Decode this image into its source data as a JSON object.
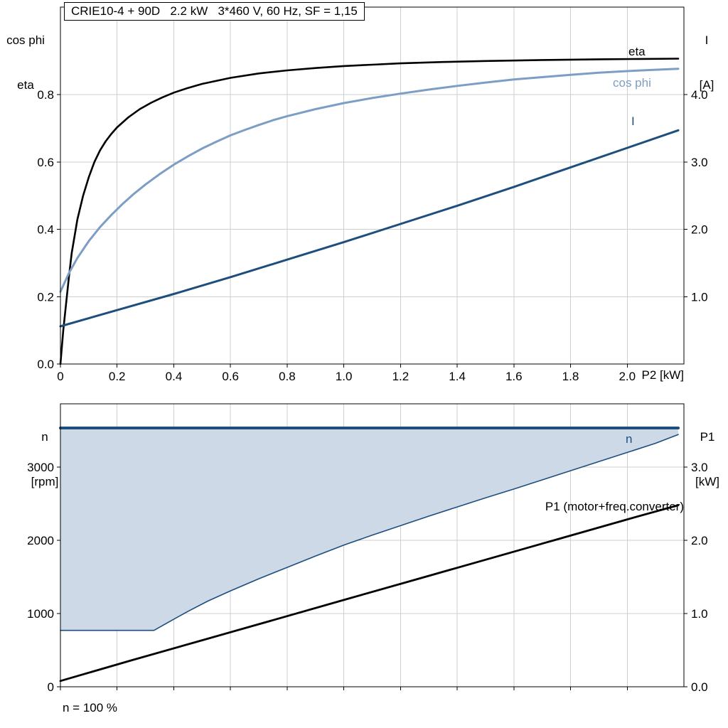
{
  "colors": {
    "grid": "#cfcfcf",
    "frame": "#000000",
    "dark_blue": "#1d4e7e",
    "light_blue": "#7d9ec4",
    "black": "#000000",
    "fill_blue": "#cdd9e6"
  },
  "chart_data": [
    {
      "type": "line",
      "title": "CRIE10-4 + 90D   2.2 kW   3*460 V, 60 Hz, SF = 1,15",
      "x_axis": {
        "min": 0,
        "max": 2.2,
        "tick_values": [
          0,
          0.2,
          0.4,
          0.6,
          0.8,
          1.0,
          1.2,
          1.4,
          1.6,
          1.8,
          2.0
        ],
        "tick_labels": [
          "0",
          "0.2",
          "0.4",
          "0.6",
          "0.8",
          "1.0",
          "1.2",
          "1.4",
          "1.6",
          "1.8",
          "2.0"
        ],
        "unit_label": "P2 [kW]"
      },
      "left_axis": {
        "title_lines": [
          "cos phi",
          "eta"
        ],
        "min": 0,
        "max": 1.06,
        "tick_values": [
          0,
          0.2,
          0.4,
          0.6,
          0.8
        ],
        "tick_labels": [
          "0.0",
          "0.2",
          "0.4",
          "0.6",
          "0.8"
        ]
      },
      "right_axis": {
        "title_lines": [
          "I",
          "[A]"
        ],
        "min": 0,
        "max": 5.3,
        "tick_values": [
          1,
          2,
          3,
          4
        ],
        "tick_labels": [
          "1.0",
          "2.0",
          "3.0",
          "4.0"
        ]
      },
      "series": [
        {
          "name": "eta",
          "label": "eta",
          "axis": "left",
          "color": "#000000",
          "width": 2.6,
          "points": [
            [
              0,
              0
            ],
            [
              0.01,
              0.1
            ],
            [
              0.02,
              0.18
            ],
            [
              0.03,
              0.26
            ],
            [
              0.04,
              0.33
            ],
            [
              0.06,
              0.43
            ],
            [
              0.08,
              0.5
            ],
            [
              0.1,
              0.555
            ],
            [
              0.12,
              0.6
            ],
            [
              0.14,
              0.635
            ],
            [
              0.16,
              0.662
            ],
            [
              0.18,
              0.684
            ],
            [
              0.2,
              0.703
            ],
            [
              0.24,
              0.733
            ],
            [
              0.28,
              0.757
            ],
            [
              0.32,
              0.776
            ],
            [
              0.36,
              0.792
            ],
            [
              0.4,
              0.806
            ],
            [
              0.45,
              0.82
            ],
            [
              0.5,
              0.832
            ],
            [
              0.6,
              0.85
            ],
            [
              0.7,
              0.863
            ],
            [
              0.8,
              0.872
            ],
            [
              0.9,
              0.879
            ],
            [
              1.0,
              0.885
            ],
            [
              1.1,
              0.889
            ],
            [
              1.2,
              0.893
            ],
            [
              1.35,
              0.897
            ],
            [
              1.5,
              0.9
            ],
            [
              1.7,
              0.903
            ],
            [
              1.9,
              0.905
            ],
            [
              2.05,
              0.906
            ],
            [
              2.18,
              0.907
            ]
          ]
        },
        {
          "name": "cos phi",
          "label": "cos phi",
          "axis": "left",
          "color": "#7d9ec4",
          "width": 3,
          "points": [
            [
              0,
              0.215
            ],
            [
              0.03,
              0.27
            ],
            [
              0.06,
              0.315
            ],
            [
              0.1,
              0.365
            ],
            [
              0.14,
              0.407
            ],
            [
              0.18,
              0.443
            ],
            [
              0.22,
              0.476
            ],
            [
              0.26,
              0.506
            ],
            [
              0.3,
              0.533
            ],
            [
              0.35,
              0.564
            ],
            [
              0.4,
              0.592
            ],
            [
              0.45,
              0.617
            ],
            [
              0.5,
              0.64
            ],
            [
              0.55,
              0.66
            ],
            [
              0.6,
              0.679
            ],
            [
              0.65,
              0.695
            ],
            [
              0.7,
              0.71
            ],
            [
              0.75,
              0.724
            ],
            [
              0.8,
              0.736
            ],
            [
              0.9,
              0.757
            ],
            [
              1.0,
              0.775
            ],
            [
              1.1,
              0.79
            ],
            [
              1.2,
              0.803
            ],
            [
              1.3,
              0.815
            ],
            [
              1.4,
              0.826
            ],
            [
              1.5,
              0.836
            ],
            [
              1.6,
              0.845
            ],
            [
              1.7,
              0.852
            ],
            [
              1.8,
              0.859
            ],
            [
              1.9,
              0.865
            ],
            [
              2.0,
              0.87
            ],
            [
              2.1,
              0.874
            ],
            [
              2.18,
              0.877
            ]
          ]
        },
        {
          "name": "I",
          "label": "I",
          "axis": "right",
          "color": "#1d4e7e",
          "width": 3,
          "points": [
            [
              0,
              0.56
            ],
            [
              0.2,
              0.8
            ],
            [
              0.4,
              1.04
            ],
            [
              0.6,
              1.29
            ],
            [
              0.8,
              1.55
            ],
            [
              1.0,
              1.81
            ],
            [
              1.2,
              2.08
            ],
            [
              1.4,
              2.35
            ],
            [
              1.6,
              2.63
            ],
            [
              1.8,
              2.92
            ],
            [
              2.0,
              3.21
            ],
            [
              2.18,
              3.47
            ]
          ]
        }
      ]
    },
    {
      "type": "line",
      "x_axis": {
        "min": 0,
        "max": 2.2,
        "tick_values": [
          0,
          0.2,
          0.4,
          0.6,
          0.8,
          1.0,
          1.2,
          1.4,
          1.6,
          1.8,
          2.0
        ],
        "tick_labels": [
          "",
          "",
          "",
          "",
          "",
          "",
          "",
          "",
          "",
          "",
          ""
        ],
        "unit_label": ""
      },
      "left_axis": {
        "title_lines": [
          "n",
          "[rpm]"
        ],
        "min": 0,
        "max": 3864,
        "tick_values": [
          0,
          1000,
          2000,
          3000
        ],
        "tick_labels": [
          "0",
          "1000",
          "2000",
          "3000"
        ]
      },
      "right_axis": {
        "title_lines": [
          "P1",
          "[kW]"
        ],
        "min": 0,
        "max": 3.864,
        "tick_values": [
          0,
          1,
          2,
          3
        ],
        "tick_labels": [
          "0.0",
          "1.0",
          "2.0",
          "3.0"
        ]
      },
      "fill": {
        "lower_series": "n",
        "upper": 3534,
        "color": "#cdd9e6"
      },
      "series": [
        {
          "name": "n max",
          "label": "",
          "axis": "left",
          "color": "#1d4e7e",
          "width": 4,
          "points": [
            [
              0,
              3534
            ],
            [
              2.18,
              3534
            ]
          ]
        },
        {
          "name": "n",
          "label": "n",
          "axis": "left",
          "color": "#1d4e7e",
          "width": 1.6,
          "points": [
            [
              0,
              770
            ],
            [
              0.33,
              770
            ],
            [
              0.38,
              880
            ],
            [
              0.45,
              1030
            ],
            [
              0.52,
              1170
            ],
            [
              0.6,
              1310
            ],
            [
              0.7,
              1475
            ],
            [
              0.8,
              1630
            ],
            [
              0.9,
              1785
            ],
            [
              1.0,
              1935
            ],
            [
              1.1,
              2070
            ],
            [
              1.2,
              2200
            ],
            [
              1.3,
              2330
            ],
            [
              1.4,
              2455
            ],
            [
              1.5,
              2580
            ],
            [
              1.6,
              2700
            ],
            [
              1.7,
              2825
            ],
            [
              1.8,
              2950
            ],
            [
              1.9,
              3075
            ],
            [
              2.0,
              3200
            ],
            [
              2.1,
              3325
            ],
            [
              2.18,
              3445
            ]
          ]
        },
        {
          "name": "P1",
          "label": "P1 (motor+freq.converter)",
          "axis": "right",
          "color": "#000000",
          "width": 2.8,
          "points": [
            [
              0,
              0.08
            ],
            [
              0.25,
              0.36
            ],
            [
              0.5,
              0.635
            ],
            [
              0.75,
              0.91
            ],
            [
              1.0,
              1.185
            ],
            [
              1.25,
              1.46
            ],
            [
              1.5,
              1.735
            ],
            [
              1.75,
              2.01
            ],
            [
              2.0,
              2.285
            ],
            [
              2.18,
              2.48
            ]
          ]
        }
      ],
      "footnote": "n = 100 %"
    }
  ]
}
